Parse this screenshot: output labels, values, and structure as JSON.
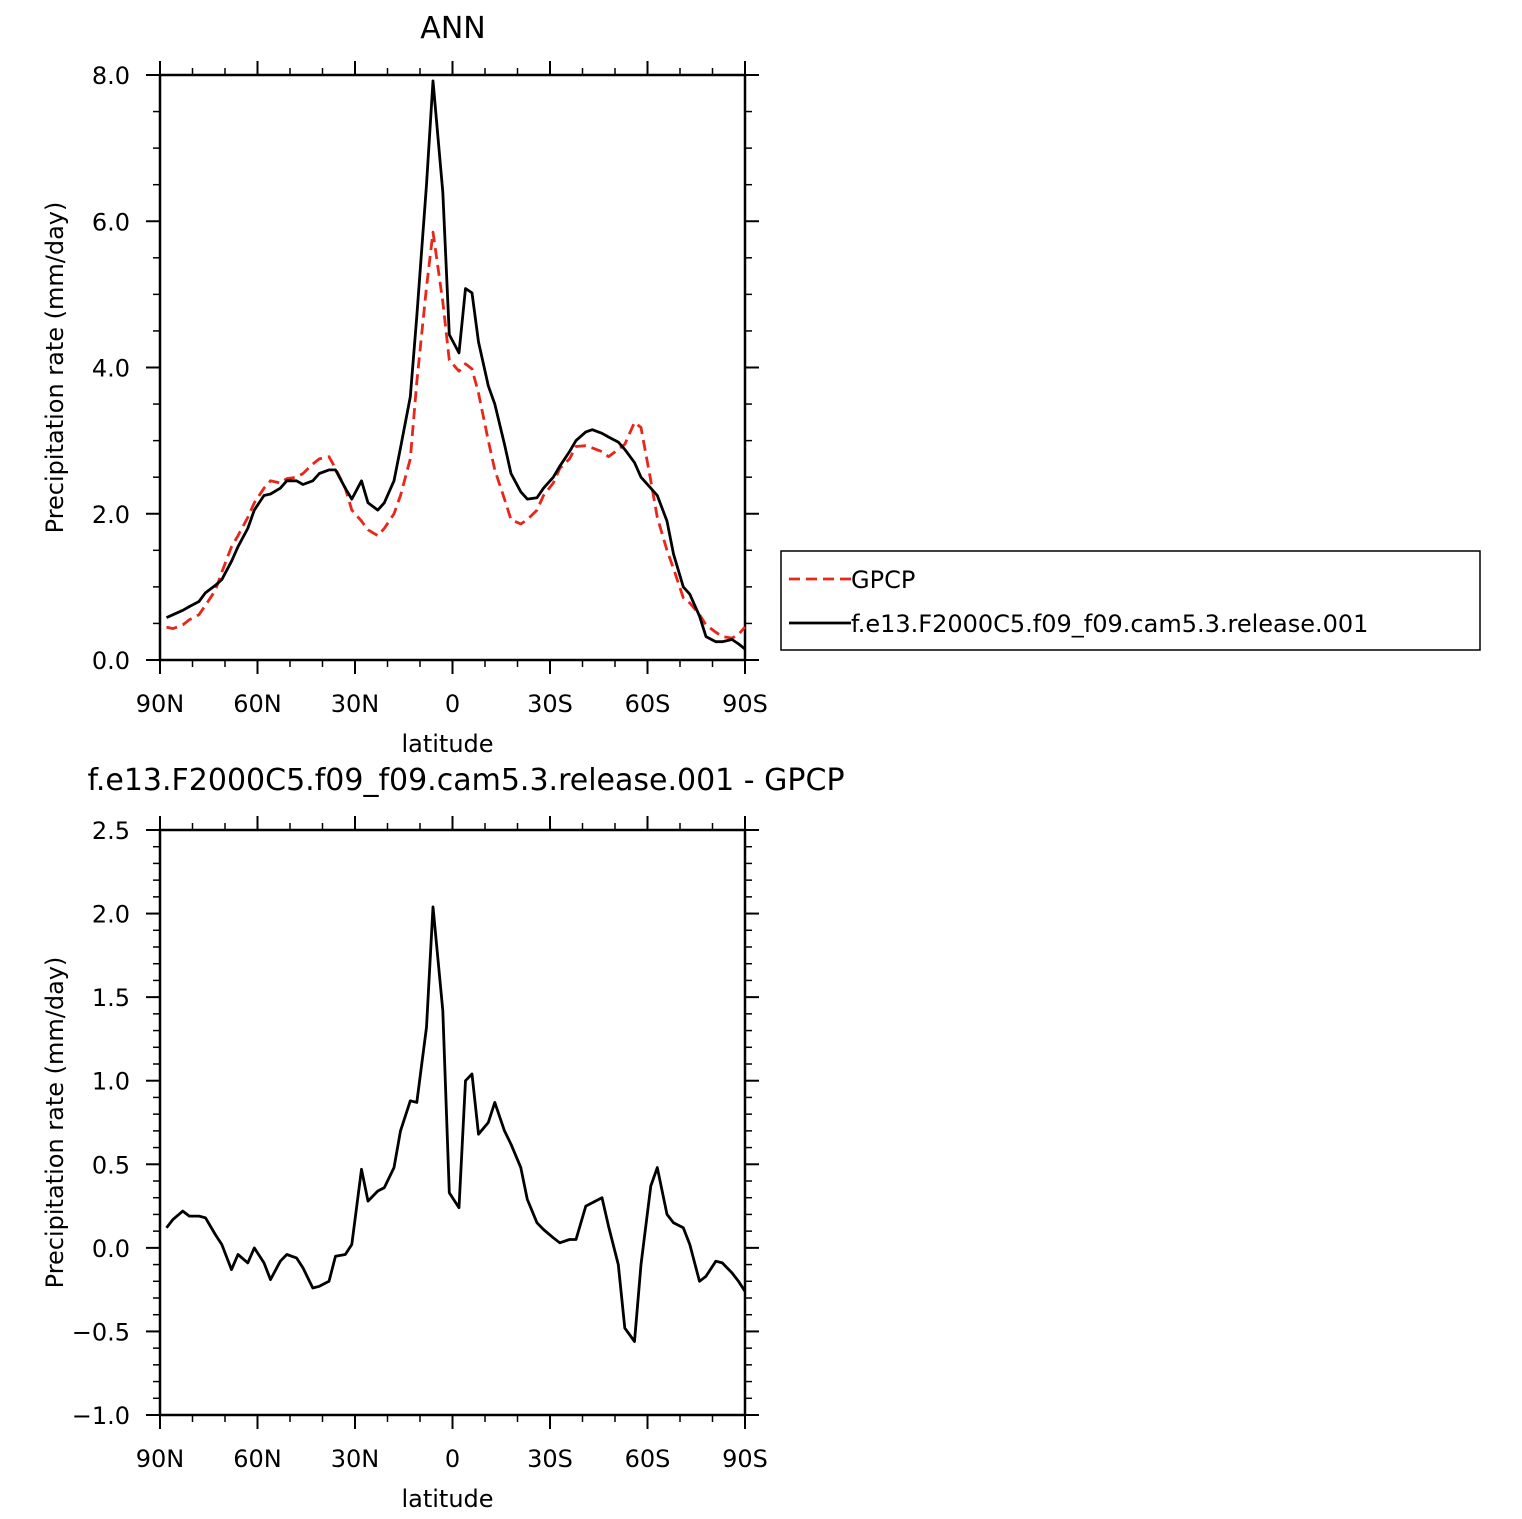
{
  "chart_data": [
    {
      "type": "line",
      "title": "ANN",
      "xlabel": "latitude",
      "ylabel": "Precipitation rate (mm/day)",
      "ylim": [
        0,
        8
      ],
      "xlim": [
        90,
        -90
      ],
      "x_ticks": [
        90,
        60,
        30,
        0,
        -30,
        -60,
        -90
      ],
      "x_tick_labels": [
        "90N",
        "60N",
        "30N",
        "0",
        "30S",
        "60S",
        "90S"
      ],
      "y_ticks": [
        0,
        2,
        4,
        6,
        8
      ],
      "y_tick_labels": [
        "0.0",
        "2.0",
        "4.0",
        "6.0",
        "8.0"
      ],
      "grid": false,
      "legend": {
        "placement": "right",
        "entries": [
          {
            "label": "GPCP",
            "color": "#e8261a",
            "dash": "dashed"
          },
          {
            "label": "f.e13.F2000C5.f09_f09.cam5.3.release.001",
            "color": "#000000",
            "dash": "solid"
          }
        ]
      },
      "series": [
        {
          "name": "GPCP",
          "color": "#e8261a",
          "dash": "dashed",
          "x": [
            88,
            86,
            83,
            81,
            78,
            76,
            73,
            71,
            68,
            66,
            63,
            61,
            58,
            56,
            53,
            51,
            48,
            46,
            43,
            41,
            38,
            36,
            33,
            31,
            28,
            26,
            23,
            21,
            18,
            16,
            13,
            11,
            8,
            6,
            3,
            1,
            -2,
            -4,
            -6,
            -8,
            -11,
            -13,
            -16,
            -18,
            -21,
            -23,
            -26,
            -28,
            -31,
            -33,
            -36,
            -38,
            -41,
            -43,
            -46,
            -48,
            -51,
            -53,
            -56,
            -58,
            -61,
            -63,
            -66,
            -68,
            -71,
            -73,
            -76,
            -78,
            -81,
            -83,
            -86,
            -88,
            -90
          ],
          "y": [
            0.45,
            0.43,
            0.48,
            0.55,
            0.62,
            0.75,
            0.95,
            1.2,
            1.55,
            1.7,
            1.95,
            2.15,
            2.35,
            2.45,
            2.42,
            2.48,
            2.5,
            2.55,
            2.68,
            2.75,
            2.78,
            2.62,
            2.35,
            2.05,
            1.9,
            1.78,
            1.7,
            1.8,
            2.0,
            2.25,
            2.75,
            3.8,
            5.1,
            5.85,
            4.9,
            4.1,
            3.95,
            4.05,
            3.98,
            3.65,
            3.0,
            2.6,
            2.2,
            1.92,
            1.86,
            1.92,
            2.05,
            2.25,
            2.42,
            2.62,
            2.75,
            2.92,
            2.93,
            2.9,
            2.85,
            2.78,
            2.88,
            2.95,
            3.25,
            3.18,
            2.45,
            1.95,
            1.5,
            1.25,
            0.85,
            0.78,
            0.62,
            0.48,
            0.38,
            0.32,
            0.3,
            0.35,
            0.45
          ]
        },
        {
          "name": "f.e13.F2000C5.f09_f09.cam5.3.release.001",
          "color": "#000000",
          "dash": "solid",
          "x": [
            88,
            86,
            83,
            81,
            78,
            76,
            73,
            71,
            68,
            66,
            63,
            61,
            58,
            56,
            53,
            51,
            48,
            46,
            43,
            41,
            38,
            36,
            33,
            31,
            28,
            26,
            23,
            21,
            18,
            16,
            13,
            11,
            8,
            6,
            3,
            1,
            -2,
            -4,
            -6,
            -8,
            -11,
            -13,
            -16,
            -18,
            -21,
            -23,
            -26,
            -28,
            -31,
            -33,
            -36,
            -38,
            -41,
            -43,
            -46,
            -48,
            -51,
            -53,
            -56,
            -58,
            -61,
            -63,
            -66,
            -68,
            -71,
            -73,
            -76,
            -78,
            -81,
            -83,
            -86,
            -88,
            -90
          ],
          "y": [
            0.58,
            0.62,
            0.68,
            0.73,
            0.8,
            0.92,
            1.02,
            1.1,
            1.35,
            1.55,
            1.8,
            2.05,
            2.25,
            2.27,
            2.35,
            2.45,
            2.45,
            2.4,
            2.45,
            2.55,
            2.6,
            2.6,
            2.35,
            2.2,
            2.45,
            2.15,
            2.05,
            2.15,
            2.45,
            2.9,
            3.6,
            4.7,
            6.5,
            7.92,
            6.4,
            4.45,
            4.2,
            5.08,
            5.02,
            4.35,
            3.75,
            3.5,
            2.95,
            2.55,
            2.3,
            2.2,
            2.22,
            2.35,
            2.5,
            2.65,
            2.85,
            3.0,
            3.12,
            3.15,
            3.1,
            3.05,
            2.98,
            2.88,
            2.7,
            2.5,
            2.35,
            2.25,
            1.9,
            1.45,
            1.0,
            0.9,
            0.6,
            0.32,
            0.25,
            0.25,
            0.28,
            0.22,
            0.15
          ]
        }
      ]
    },
    {
      "type": "line",
      "title": "f.e13.F2000C5.f09_f09.cam5.3.release.001 - GPCP",
      "xlabel": "latitude",
      "ylabel": "Precipitation rate (mm/day)",
      "ylim": [
        -1.0,
        2.5
      ],
      "xlim": [
        90,
        -90
      ],
      "x_ticks": [
        90,
        60,
        30,
        0,
        -30,
        -60,
        -90
      ],
      "x_tick_labels": [
        "90N",
        "60N",
        "30N",
        "0",
        "30S",
        "60S",
        "90S"
      ],
      "y_ticks": [
        -1.0,
        -0.5,
        0.0,
        0.5,
        1.0,
        1.5,
        2.0,
        2.5
      ],
      "y_tick_labels": [
        "−1.0",
        "−0.5",
        "0.0",
        "0.5",
        "1.0",
        "1.5",
        "2.0",
        "2.5"
      ],
      "grid": false,
      "series": [
        {
          "color": "#000000",
          "x": [
            88,
            86,
            83,
            81,
            78,
            76,
            73,
            71,
            68,
            66,
            63,
            61,
            58,
            56,
            53,
            51,
            48,
            46,
            43,
            41,
            38,
            36,
            33,
            31,
            28,
            26,
            23,
            21,
            18,
            16,
            13,
            11,
            8,
            6,
            3,
            1,
            -2,
            -4,
            -6,
            -8,
            -11,
            -13,
            -16,
            -18,
            -21,
            -23,
            -26,
            -28,
            -31,
            -33,
            -36,
            -38,
            -41,
            -43,
            -46,
            -48,
            -51,
            -53,
            -56,
            -58,
            -61,
            -63,
            -66,
            -68,
            -71,
            -73,
            -76,
            -78,
            -81,
            -83,
            -86,
            -88,
            -90
          ],
          "y": [
            0.12,
            0.17,
            0.22,
            0.19,
            0.19,
            0.18,
            0.08,
            0.02,
            -0.13,
            -0.04,
            -0.09,
            0.0,
            -0.09,
            -0.19,
            -0.08,
            -0.04,
            -0.06,
            -0.12,
            -0.24,
            -0.23,
            -0.2,
            -0.05,
            -0.04,
            0.02,
            0.47,
            0.28,
            0.34,
            0.36,
            0.48,
            0.7,
            0.88,
            0.87,
            1.32,
            2.04,
            1.42,
            0.33,
            0.24,
            1.0,
            1.04,
            0.68,
            0.75,
            0.87,
            0.7,
            0.62,
            0.48,
            0.29,
            0.15,
            0.11,
            0.06,
            0.03,
            0.05,
            0.05,
            0.25,
            0.27,
            0.3,
            0.13,
            -0.1,
            -0.48,
            -0.56,
            -0.1,
            0.37,
            0.48,
            0.2,
            0.15,
            0.12,
            0.02,
            -0.2,
            -0.17,
            -0.08,
            -0.09,
            -0.15,
            -0.2,
            -0.26
          ]
        }
      ]
    }
  ]
}
